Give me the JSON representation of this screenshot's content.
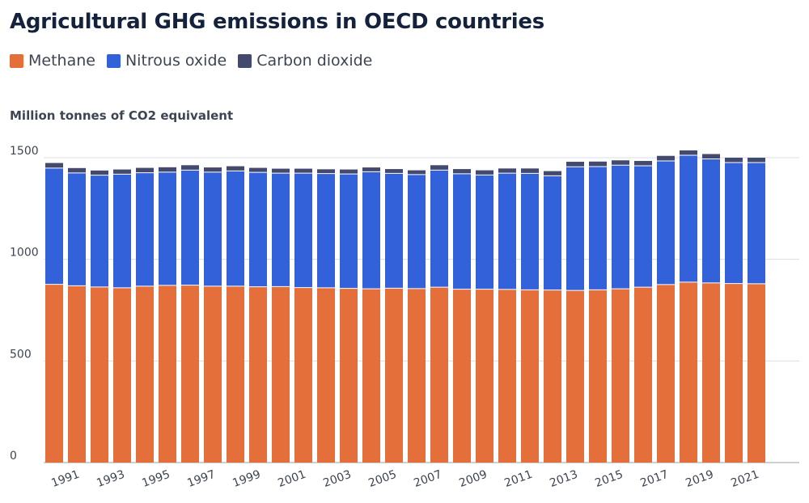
{
  "chart_data": {
    "type": "bar",
    "stacked": true,
    "title": "Agricultural GHG emissions in OECD countries",
    "ylabel": "Million tonnes of CO2 equivalent",
    "xlabel": "",
    "ylim": [
      0,
      1500
    ],
    "yticks": [
      0,
      500,
      1000,
      1500
    ],
    "grid": true,
    "legend_position": "top-left",
    "categories": [
      "1990",
      "1991",
      "1992",
      "1993",
      "1994",
      "1995",
      "1996",
      "1997",
      "1998",
      "1999",
      "2000",
      "2001",
      "2002",
      "2003",
      "2004",
      "2005",
      "2006",
      "2007",
      "2008",
      "2009",
      "2010",
      "2011",
      "2012",
      "2013",
      "2014",
      "2015",
      "2016",
      "2017",
      "2018",
      "2019",
      "2020",
      "2021"
    ],
    "xtick_labels": [
      "1991",
      "1993",
      "1995",
      "1997",
      "1999",
      "2001",
      "2003",
      "2005",
      "2007",
      "2009",
      "2011",
      "2013",
      "2015",
      "2017",
      "2019",
      "2021"
    ],
    "series": [
      {
        "name": "Methane",
        "color": "#e46f3a",
        "values": [
          877,
          870,
          864,
          860,
          868,
          872,
          873,
          868,
          868,
          865,
          866,
          861,
          860,
          857,
          855,
          858,
          856,
          863,
          853,
          853,
          852,
          850,
          849,
          847,
          850,
          855,
          863,
          876,
          888,
          884,
          881,
          880
        ]
      },
      {
        "name": "Nitrous oxide",
        "color": "#3261d9",
        "values": [
          572,
          555,
          550,
          559,
          558,
          557,
          566,
          561,
          567,
          563,
          558,
          563,
          562,
          563,
          576,
          565,
          561,
          576,
          568,
          562,
          572,
          573,
          562,
          608,
          606,
          608,
          597,
          608,
          624,
          610,
          595,
          596
        ]
      },
      {
        "name": "Carbon dioxide",
        "color": "#434a6e",
        "values": [
          25,
          24,
          23,
          23,
          24,
          24,
          24,
          23,
          23,
          22,
          22,
          22,
          21,
          22,
          21,
          21,
          21,
          24,
          23,
          23,
          23,
          24,
          23,
          25,
          25,
          24,
          24,
          25,
          24,
          24,
          24,
          24
        ]
      }
    ]
  }
}
